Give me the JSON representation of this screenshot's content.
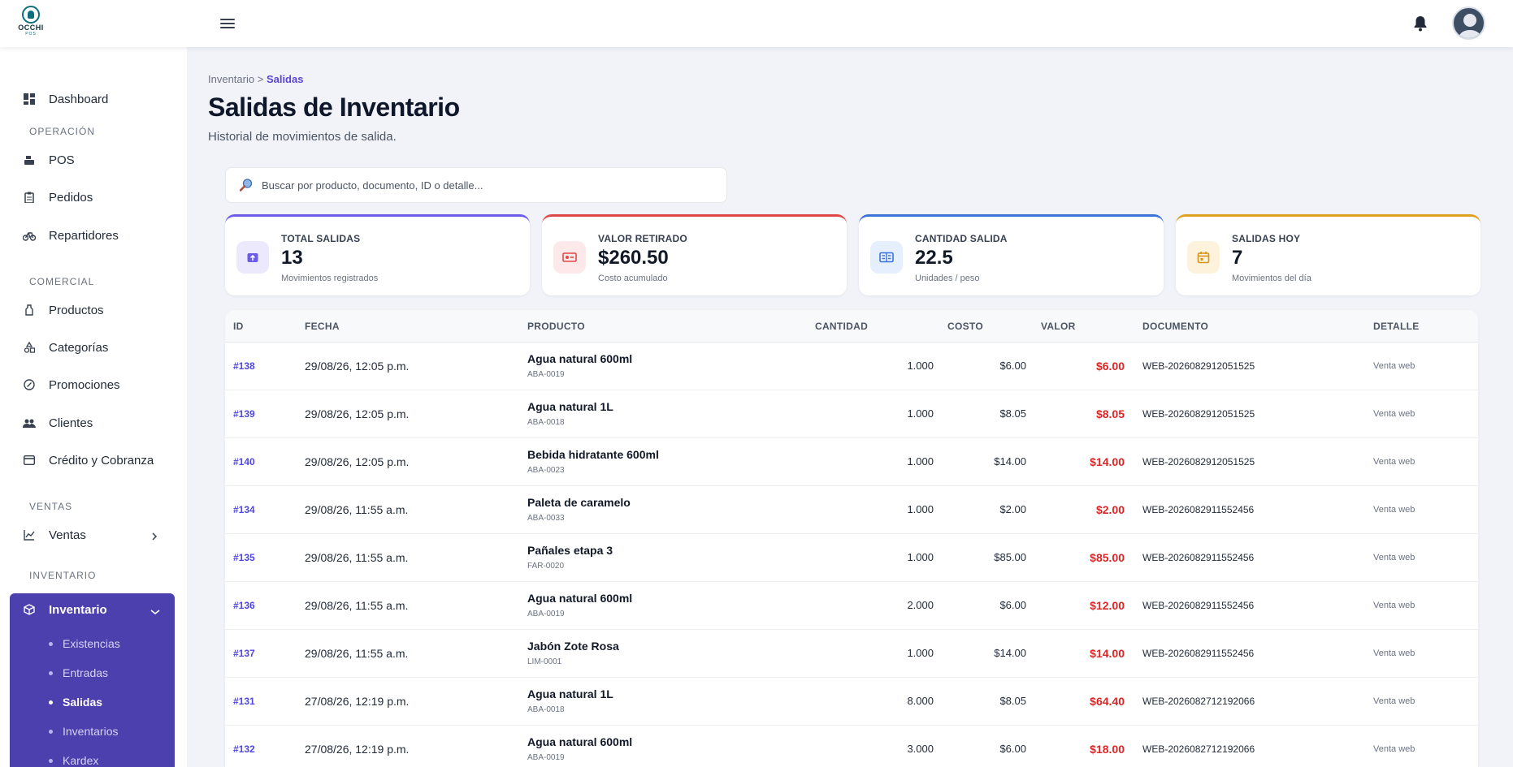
{
  "brand": {
    "logo_text": "OCCHI",
    "logo_sub": "POS"
  },
  "sidebar": {
    "items": [
      {
        "label": "Dashboard"
      },
      {
        "label": "POS"
      },
      {
        "label": "Pedidos"
      },
      {
        "label": "Repartidores"
      },
      {
        "label": "Productos"
      },
      {
        "label": "Categorías"
      },
      {
        "label": "Promociones"
      },
      {
        "label": "Clientes"
      },
      {
        "label": "Crédito y Cobranza"
      },
      {
        "label": "Ventas"
      }
    ],
    "sections": [
      "OPERACIÓN",
      "COMERCIAL",
      "VENTAS",
      "INVENTARIO"
    ],
    "active": {
      "label": "Inventario",
      "subitems": [
        "Existencias",
        "Entradas",
        "Salidas",
        "Inventarios",
        "Kardex"
      ]
    }
  },
  "breadcrumb": {
    "parent": "Inventario",
    "separator": ">",
    "current": "Salidas"
  },
  "page": {
    "title": "Salidas de Inventario",
    "subtitle": "Historial de movimientos de salida."
  },
  "search": {
    "placeholder": "Buscar por producto, documento, ID o detalle..."
  },
  "cards": [
    {
      "label": "TOTAL SALIDAS",
      "value": "13",
      "hint": "Movimientos registrados",
      "accent": "#6d5ce8",
      "icon": "box-out-icon"
    },
    {
      "label": "VALOR RETIRADO",
      "value": "$260.50",
      "hint": "Costo acumulado",
      "accent": "#e04848",
      "icon": "cash-icon"
    },
    {
      "label": "CANTIDAD SALIDA",
      "value": "22.5",
      "hint": "Unidades / peso",
      "accent": "#3b73d9",
      "icon": "scale-icon"
    },
    {
      "label": "SALIDAS HOY",
      "value": "7",
      "hint": "Movimientos del día",
      "accent": "#e0a020",
      "icon": "calendar-icon"
    }
  ],
  "table": {
    "headers": [
      "ID",
      "FECHA",
      "PRODUCTO",
      "CANTIDAD",
      "COSTO",
      "VALOR",
      "DOCUMENTO",
      "DETALLE"
    ],
    "rows": [
      {
        "id": "#138",
        "date": "29/08/26, 12:05 p.m.",
        "product": "Agua natural 600ml",
        "sku": "ABA-0019",
        "qty": "1.000",
        "cost": "$6.00",
        "value": "$6.00",
        "doc": "WEB-2026082912051525",
        "detail": "Venta web"
      },
      {
        "id": "#139",
        "date": "29/08/26, 12:05 p.m.",
        "product": "Agua natural 1L",
        "sku": "ABA-0018",
        "qty": "1.000",
        "cost": "$8.05",
        "value": "$8.05",
        "doc": "WEB-2026082912051525",
        "detail": "Venta web"
      },
      {
        "id": "#140",
        "date": "29/08/26, 12:05 p.m.",
        "product": "Bebida hidratante 600ml",
        "sku": "ABA-0023",
        "qty": "1.000",
        "cost": "$14.00",
        "value": "$14.00",
        "doc": "WEB-2026082912051525",
        "detail": "Venta web"
      },
      {
        "id": "#134",
        "date": "29/08/26, 11:55 a.m.",
        "product": "Paleta de caramelo",
        "sku": "ABA-0033",
        "qty": "1.000",
        "cost": "$2.00",
        "value": "$2.00",
        "doc": "WEB-2026082911552456",
        "detail": "Venta web"
      },
      {
        "id": "#135",
        "date": "29/08/26, 11:55 a.m.",
        "product": "Pañales etapa 3",
        "sku": "FAR-0020",
        "qty": "1.000",
        "cost": "$85.00",
        "value": "$85.00",
        "doc": "WEB-2026082911552456",
        "detail": "Venta web"
      },
      {
        "id": "#136",
        "date": "29/08/26, 11:55 a.m.",
        "product": "Agua natural 600ml",
        "sku": "ABA-0019",
        "qty": "2.000",
        "cost": "$6.00",
        "value": "$12.00",
        "doc": "WEB-2026082911552456",
        "detail": "Venta web"
      },
      {
        "id": "#137",
        "date": "29/08/26, 11:55 a.m.",
        "product": "Jabón Zote Rosa",
        "sku": "LIM-0001",
        "qty": "1.000",
        "cost": "$14.00",
        "value": "$14.00",
        "doc": "WEB-2026082911552456",
        "detail": "Venta web"
      },
      {
        "id": "#131",
        "date": "27/08/26, 12:19 p.m.",
        "product": "Agua natural 1L",
        "sku": "ABA-0018",
        "qty": "8.000",
        "cost": "$8.05",
        "value": "$64.40",
        "doc": "WEB-2026082712192066",
        "detail": "Venta web"
      },
      {
        "id": "#132",
        "date": "27/08/26, 12:19 p.m.",
        "product": "Agua natural 600ml",
        "sku": "ABA-0019",
        "qty": "3.000",
        "cost": "$6.00",
        "value": "$18.00",
        "doc": "WEB-2026082712192066",
        "detail": "Venta web"
      }
    ]
  }
}
